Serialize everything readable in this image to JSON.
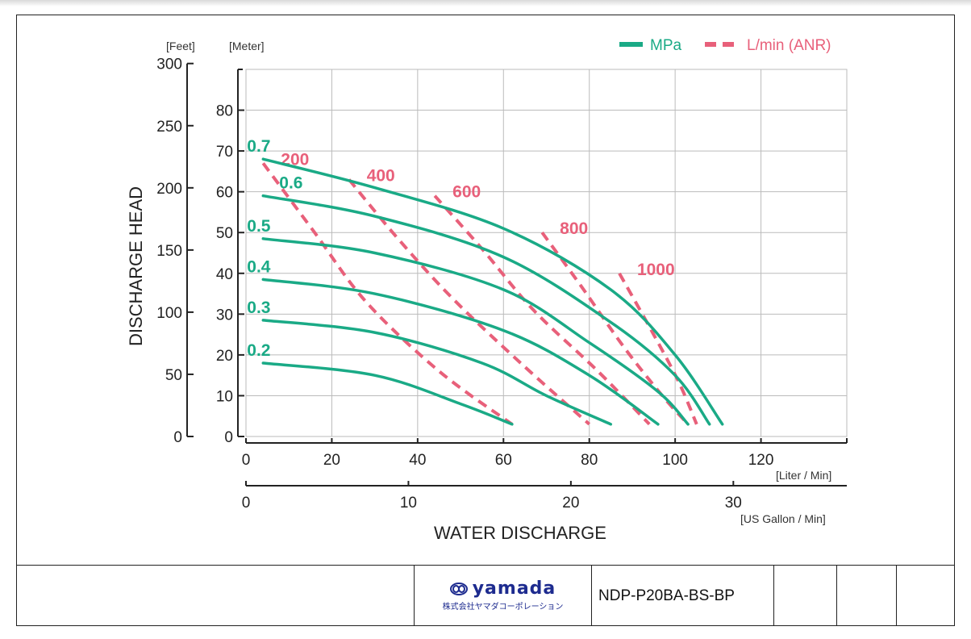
{
  "chart_data": {
    "type": "line",
    "xlabel": "WATER DISCHARGE",
    "ylabel": "DISCHARGE HEAD",
    "x_unit_primary": "[Liter / Min]",
    "x_unit_secondary": "[US Gallon / Min]",
    "y_unit_left": "[Feet]",
    "y_unit_right": "[Meter]",
    "x_ticks": [
      "0",
      "20",
      "40",
      "60",
      "80",
      "100",
      "120"
    ],
    "x2_ticks": [
      "0",
      "10",
      "20",
      "30"
    ],
    "y_feet_ticks": [
      "0",
      "50",
      "100",
      "150",
      "200",
      "250",
      "300"
    ],
    "y_meter_ticks": [
      "0",
      "10",
      "20",
      "30",
      "40",
      "50",
      "60",
      "70",
      "80"
    ],
    "xlim": [
      0,
      140
    ],
    "ylim_meter": [
      0,
      90
    ],
    "grid": true,
    "legend": {
      "position": "top-right",
      "items": [
        {
          "label": "MPa",
          "style": "solid",
          "color": "#1aaa86"
        },
        {
          "label": "L/min (ANR)",
          "style": "dashed",
          "color": "#e8607a"
        }
      ]
    },
    "pressure_curves": [
      {
        "name": "0.7",
        "points": [
          [
            4,
            68
          ],
          [
            30,
            61
          ],
          [
            60,
            51
          ],
          [
            85,
            36
          ],
          [
            100,
            20
          ],
          [
            111,
            3
          ]
        ]
      },
      {
        "name": "0.6",
        "points": [
          [
            4,
            59
          ],
          [
            30,
            54
          ],
          [
            60,
            44
          ],
          [
            85,
            28
          ],
          [
            100,
            15
          ],
          [
            108,
            3
          ]
        ]
      },
      {
        "name": "0.5",
        "points": [
          [
            4,
            48.5
          ],
          [
            30,
            45
          ],
          [
            60,
            36
          ],
          [
            80,
            23
          ],
          [
            96,
            11
          ],
          [
            103,
            3
          ]
        ]
      },
      {
        "name": "0.4",
        "points": [
          [
            4,
            38.5
          ],
          [
            30,
            35
          ],
          [
            60,
            26
          ],
          [
            80,
            15
          ],
          [
            96,
            3
          ]
        ]
      },
      {
        "name": "0.3",
        "points": [
          [
            4,
            28.5
          ],
          [
            30,
            25.5
          ],
          [
            55,
            18
          ],
          [
            70,
            10
          ],
          [
            85,
            3
          ]
        ]
      },
      {
        "name": "0.2",
        "points": [
          [
            4,
            18
          ],
          [
            30,
            15
          ],
          [
            50,
            8
          ],
          [
            62,
            3
          ]
        ]
      }
    ],
    "air_consumption_curves": [
      {
        "name": "200",
        "points": [
          [
            4,
            67
          ],
          [
            16,
            50
          ],
          [
            28,
            33
          ],
          [
            45,
            16
          ],
          [
            62,
            3
          ]
        ]
      },
      {
        "name": "400",
        "points": [
          [
            24,
            63
          ],
          [
            35,
            49
          ],
          [
            48,
            34
          ],
          [
            64,
            18
          ],
          [
            80,
            3
          ]
        ]
      },
      {
        "name": "600",
        "points": [
          [
            44,
            59
          ],
          [
            55,
            46
          ],
          [
            67,
            31
          ],
          [
            82,
            16
          ],
          [
            94,
            3
          ]
        ]
      },
      {
        "name": "800",
        "points": [
          [
            69,
            50
          ],
          [
            78,
            37
          ],
          [
            88,
            22
          ],
          [
            97,
            10
          ],
          [
            103,
            3
          ]
        ]
      },
      {
        "name": "1000",
        "points": [
          [
            87,
            40
          ],
          [
            95,
            25
          ],
          [
            101,
            13
          ],
          [
            105,
            3
          ]
        ]
      }
    ]
  },
  "title_block": {
    "logo_text": "yamada",
    "logo_subtext": "株式会社ヤマダコーポレーション",
    "part_number": "NDP-P20BA-BS-BP"
  }
}
